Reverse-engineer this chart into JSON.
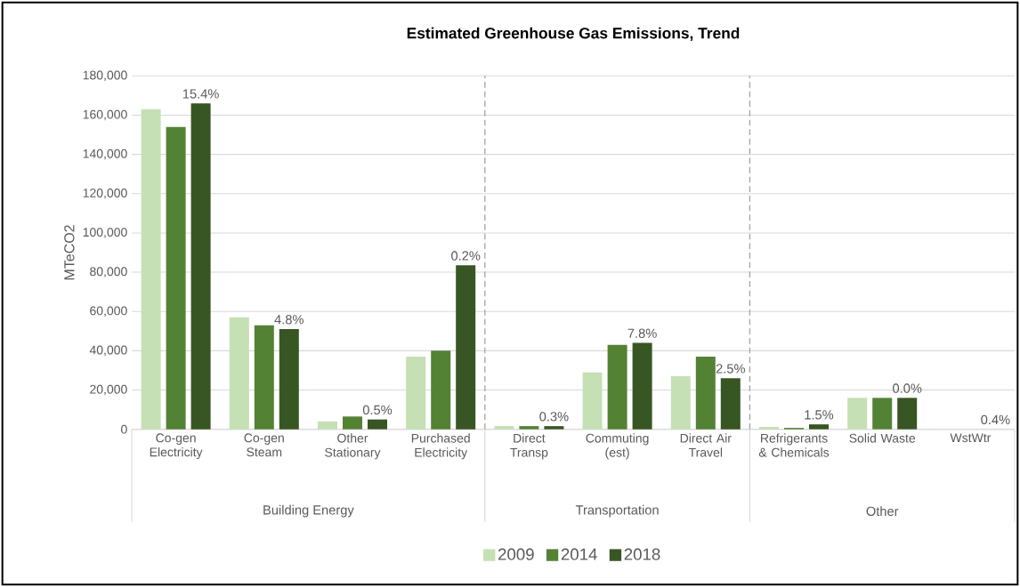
{
  "chart_data": {
    "type": "bar",
    "title": "Estimated Greenhouse Gas Emissions, Trend",
    "ylabel": "MTeCO2",
    "categories": [
      "Co-gen Electricity",
      "Co-gen Steam",
      "Other Stationary",
      "Purchased Electricity",
      "Direct Transp",
      "Commuting (est)",
      "Direct Air Travel",
      "Refrigerants & Chemicals",
      "Solid Waste",
      "WstWtr"
    ],
    "series": [
      {
        "name": "2009",
        "color": "#c5e0b4",
        "values": [
          163000,
          57000,
          4000,
          37000,
          1600,
          29000,
          27000,
          1200,
          16000,
          0
        ]
      },
      {
        "name": "2014",
        "color": "#548235",
        "values": [
          154000,
          53000,
          6500,
          40000,
          1600,
          43000,
          37000,
          700,
          16000,
          0
        ]
      },
      {
        "name": "2018",
        "color": "#375623",
        "values": [
          166000,
          51000,
          5000,
          83500,
          1600,
          44000,
          26000,
          2500,
          16000,
          0
        ]
      }
    ],
    "ylim": [
      0,
      180000
    ],
    "yticks": [
      {
        "value": 0,
        "label": "0"
      },
      {
        "value": 20000,
        "label": "20,000"
      },
      {
        "value": 40000,
        "label": "40,000"
      },
      {
        "value": 60000,
        "label": "60,000"
      },
      {
        "value": 80000,
        "label": "80,000"
      },
      {
        "value": 100000,
        "label": "100,000"
      },
      {
        "value": 120000,
        "label": "120,000"
      },
      {
        "value": 140000,
        "label": "140,000"
      },
      {
        "value": 160000,
        "label": "160,000"
      },
      {
        "value": 180000,
        "label": "180,000"
      }
    ],
    "grid": "y",
    "legend": "bottom",
    "annotations": [
      "15.4%",
      "4.8%",
      "0.5%",
      "0.2%",
      "0.3%",
      "7.8%",
      "2.5%",
      "1.5%",
      "0.0%",
      "0.4%",
      "Building Energy",
      "Transportation",
      "Other"
    ]
  }
}
